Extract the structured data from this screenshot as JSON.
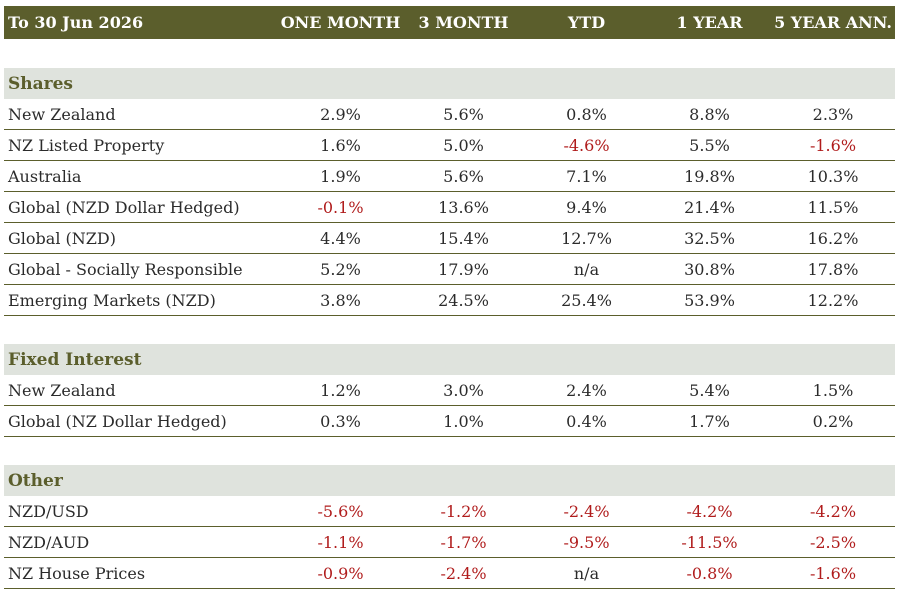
{
  "header": {
    "date_label": "To 30 Jun 2026",
    "columns": [
      "ONE MONTH",
      "3 MONTH",
      "YTD",
      "1 YEAR",
      "5 YEAR ANN."
    ]
  },
  "sections": [
    {
      "title": "Shares",
      "rows": [
        {
          "label": "New Zealand",
          "values": [
            "2.9%",
            "5.6%",
            "0.8%",
            "8.8%",
            "2.3%"
          ]
        },
        {
          "label": "NZ Listed Property",
          "values": [
            "1.6%",
            "5.0%",
            "-4.6%",
            "5.5%",
            "-1.6%"
          ]
        },
        {
          "label": "Australia",
          "values": [
            "1.9%",
            "5.6%",
            "7.1%",
            "19.8%",
            "10.3%"
          ]
        },
        {
          "label": "Global (NZD Dollar Hedged)",
          "values": [
            "-0.1%",
            "13.6%",
            "9.4%",
            "21.4%",
            "11.5%"
          ]
        },
        {
          "label": "Global (NZD)",
          "values": [
            "4.4%",
            "15.4%",
            "12.7%",
            "32.5%",
            "16.2%"
          ]
        },
        {
          "label": "Global - Socially Responsible",
          "values": [
            "5.2%",
            "17.9%",
            "n/a",
            "30.8%",
            "17.8%"
          ]
        },
        {
          "label": "Emerging Markets (NZD)",
          "values": [
            "3.8%",
            "24.5%",
            "25.4%",
            "53.9%",
            "12.2%"
          ]
        }
      ]
    },
    {
      "title": "Fixed Interest",
      "rows": [
        {
          "label": "New Zealand",
          "values": [
            "1.2%",
            "3.0%",
            "2.4%",
            "5.4%",
            "1.5%"
          ]
        },
        {
          "label": "Global (NZ Dollar Hedged)",
          "values": [
            "0.3%",
            "1.0%",
            "0.4%",
            "1.7%",
            "0.2%"
          ]
        }
      ]
    },
    {
      "title": "Other",
      "rows": [
        {
          "label": "NZD/USD",
          "values": [
            "-5.6%",
            "-1.2%",
            "-2.4%",
            "-4.2%",
            "-4.2%"
          ]
        },
        {
          "label": "NZD/AUD",
          "values": [
            "-1.1%",
            "-1.7%",
            "-9.5%",
            "-11.5%",
            "-2.5%"
          ]
        },
        {
          "label": "NZ House Prices",
          "values": [
            "-0.9%",
            "-2.4%",
            "n/a",
            "-0.8%",
            "-1.6%"
          ]
        }
      ]
    }
  ],
  "colors": {
    "header_bg": "#5b5e2c",
    "section_bg": "#dfe3dd",
    "negative": "#b01c1c",
    "text": "#2b2b2b"
  }
}
